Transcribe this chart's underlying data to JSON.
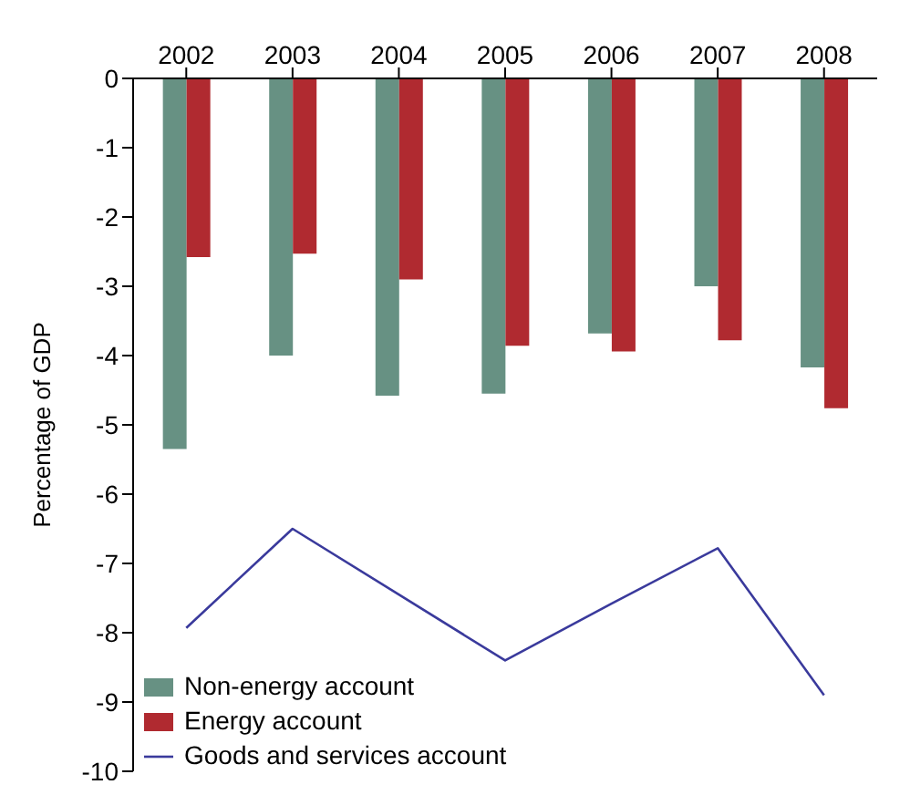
{
  "chart_data": {
    "type": "bar",
    "ylabel": "Percentage of GDP",
    "categories": [
      "2002",
      "2003",
      "2004",
      "2005",
      "2006",
      "2007",
      "2008"
    ],
    "series": [
      {
        "name": "Non-energy account",
        "color": "#679183",
        "values": [
          -5.35,
          -4.0,
          -4.58,
          -4.55,
          -3.68,
          -3.0,
          -4.17
        ]
      },
      {
        "name": "Energy account",
        "color": "#b02a30",
        "values": [
          -2.58,
          -2.53,
          -2.9,
          -3.86,
          -3.94,
          -3.78,
          -4.76
        ]
      },
      {
        "name": "Goods and services account",
        "type": "line",
        "color": "#3a3a9c",
        "values": [
          -7.93,
          -6.5,
          -7.45,
          -8.4,
          -7.58,
          -6.78,
          -8.9
        ]
      }
    ],
    "ylim": [
      -10,
      0
    ],
    "yticks": [
      -10,
      -9,
      -8,
      -7,
      -6,
      -5,
      -4,
      -3,
      -2,
      -1,
      0
    ],
    "grid": false,
    "legend": "bottom left",
    "marker": "none"
  }
}
